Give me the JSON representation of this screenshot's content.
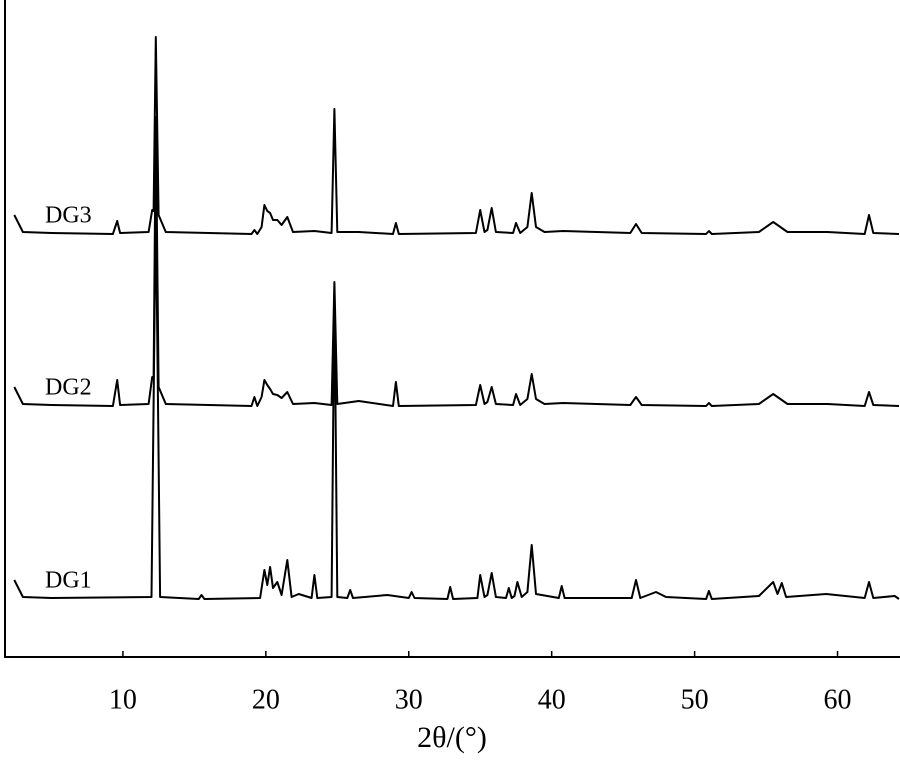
{
  "chart_data": {
    "type": "line",
    "x_label": "2θ/(°)",
    "xlim": [
      1.75,
      64.3
    ],
    "xticks": [
      10,
      20,
      30,
      40,
      50,
      60
    ],
    "series": [
      {
        "name": "DG1",
        "color": "#000000",
        "x": [
          2.4,
          3.0,
          5,
          12.0,
          12.3,
          12.6,
          15.3,
          15.5,
          15.7,
          19.6,
          19.9,
          20.1,
          20.3,
          20.5,
          20.8,
          21.1,
          21.5,
          21.8,
          22.3,
          23.2,
          23.4,
          23.6,
          24.6,
          24.8,
          25.0,
          25.7,
          25.9,
          26.1,
          28.5,
          30.0,
          30.2,
          30.4,
          32.7,
          32.9,
          33.1,
          34.8,
          35.0,
          35.3,
          35.5,
          35.8,
          36.1,
          36.8,
          37.0,
          37.2,
          37.4,
          37.6,
          37.9,
          38.3,
          38.6,
          38.9,
          40.5,
          40.7,
          40.9,
          45.6,
          45.9,
          46.2,
          47.3,
          48.0,
          50.8,
          51.0,
          51.2,
          54.5,
          55.5,
          55.8,
          56.1,
          56.4,
          59.2,
          61.9,
          62.2,
          62.5,
          64.0,
          64.3
        ],
        "values": [
          20,
          3,
          2,
          3,
          400,
          3,
          1,
          5,
          1,
          2,
          30,
          15,
          33,
          12,
          18,
          5,
          40,
          3,
          6,
          2,
          25,
          2,
          3,
          310,
          3,
          2,
          10,
          2,
          5,
          2,
          8,
          2,
          1,
          13,
          1,
          2,
          25,
          3,
          5,
          27,
          3,
          2,
          12,
          2,
          4,
          18,
          3,
          8,
          55,
          6,
          2,
          14,
          2,
          2,
          20,
          2,
          8,
          3,
          1,
          9,
          1,
          4,
          18,
          6,
          17,
          3,
          6,
          2,
          18,
          2,
          4,
          1
        ]
      },
      {
        "name": "DG2",
        "color": "#000000",
        "x": [
          2.4,
          3.0,
          5,
          9.3,
          9.6,
          9.8,
          11.8,
          12.05,
          12.15,
          12.3,
          12.5,
          13,
          19.0,
          19.2,
          19.4,
          19.7,
          19.9,
          20.1,
          20.3,
          20.5,
          20.8,
          21.1,
          21.5,
          21.9,
          23.4,
          24.6,
          24.8,
          25.0,
          26.5,
          28.9,
          29.1,
          29.3,
          34.7,
          35.0,
          35.3,
          35.5,
          35.8,
          36.1,
          37.3,
          37.5,
          37.8,
          38.3,
          38.6,
          38.9,
          39.5,
          40.8,
          45.5,
          45.9,
          46.3,
          50.8,
          51.0,
          51.2,
          54.5,
          55.5,
          56.5,
          59.3,
          61.9,
          62.2,
          62.5,
          64.3
        ],
        "values": [
          20,
          3,
          2,
          1,
          27,
          2,
          3,
          30,
          28,
          290,
          20,
          3,
          1,
          10,
          1,
          10,
          27,
          22,
          18,
          13,
          12,
          9,
          15,
          3,
          4,
          2,
          125,
          3,
          6,
          1,
          25,
          1,
          2,
          22,
          3,
          5,
          20,
          3,
          2,
          13,
          2,
          8,
          33,
          8,
          3,
          4,
          2,
          10,
          2,
          1,
          4,
          1,
          3,
          13,
          3,
          3,
          1,
          15,
          2,
          1
        ]
      },
      {
        "name": "DG3",
        "color": "#000000",
        "x": [
          2.4,
          3.0,
          5,
          9.3,
          9.6,
          9.8,
          11.8,
          12.05,
          12.15,
          12.3,
          12.5,
          13,
          19.0,
          19.2,
          19.4,
          19.7,
          19.9,
          20.1,
          20.3,
          20.5,
          20.8,
          21.1,
          21.5,
          21.9,
          23.4,
          24.6,
          24.8,
          25.0,
          26.5,
          28.9,
          29.1,
          29.3,
          34.7,
          35.0,
          35.3,
          35.5,
          35.8,
          36.1,
          37.3,
          37.5,
          37.8,
          38.3,
          38.6,
          38.9,
          39.5,
          40.8,
          45.5,
          45.9,
          46.3,
          50.8,
          51.0,
          51.2,
          54.5,
          55.5,
          56.5,
          59.3,
          61.9,
          62.2,
          62.5,
          64.3
        ],
        "values": [
          20,
          3,
          2,
          1,
          14,
          2,
          3,
          25,
          24,
          198,
          20,
          3,
          1,
          5,
          1,
          8,
          30,
          24,
          22,
          15,
          15,
          10,
          18,
          3,
          4,
          2,
          126,
          3,
          3,
          1,
          12,
          1,
          2,
          25,
          3,
          5,
          27,
          3,
          2,
          12,
          2,
          8,
          42,
          8,
          3,
          4,
          2,
          11,
          2,
          1,
          4,
          1,
          3,
          13,
          3,
          3,
          1,
          20,
          2,
          1
        ]
      }
    ]
  }
}
